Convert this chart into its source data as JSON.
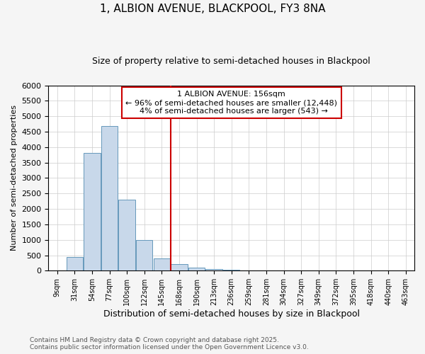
{
  "title": "1, ALBION AVENUE, BLACKPOOL, FY3 8NA",
  "subtitle": "Size of property relative to semi-detached houses in Blackpool",
  "xlabel": "Distribution of semi-detached houses by size in Blackpool",
  "ylabel": "Number of semi-detached properties",
  "footnote1": "Contains HM Land Registry data © Crown copyright and database right 2025.",
  "footnote2": "Contains public sector information licensed under the Open Government Licence v3.0.",
  "categories": [
    "9sqm",
    "31sqm",
    "54sqm",
    "77sqm",
    "100sqm",
    "122sqm",
    "145sqm",
    "168sqm",
    "190sqm",
    "213sqm",
    "236sqm",
    "259sqm",
    "281sqm",
    "304sqm",
    "327sqm",
    "349sqm",
    "372sqm",
    "395sqm",
    "418sqm",
    "440sqm",
    "463sqm"
  ],
  "values": [
    0,
    450,
    3820,
    4680,
    2300,
    1000,
    400,
    225,
    100,
    65,
    30,
    10,
    0,
    0,
    0,
    0,
    0,
    0,
    0,
    0,
    0
  ],
  "bar_color": "#c8d8ea",
  "bar_edge_color": "#6699bb",
  "ylim": [
    0,
    6000
  ],
  "yticks": [
    0,
    500,
    1000,
    1500,
    2000,
    2500,
    3000,
    3500,
    4000,
    4500,
    5000,
    5500,
    6000
  ],
  "property_label": "1 ALBION AVENUE: 156sqm",
  "pct_smaller": 96,
  "num_smaller": "12,448",
  "pct_larger": 4,
  "num_larger": "543",
  "vline_color": "#cc0000",
  "annotation_box_color": "#cc0000",
  "bg_color": "#f5f5f5",
  "plot_bg_color": "#ffffff",
  "grid_color": "#cccccc"
}
